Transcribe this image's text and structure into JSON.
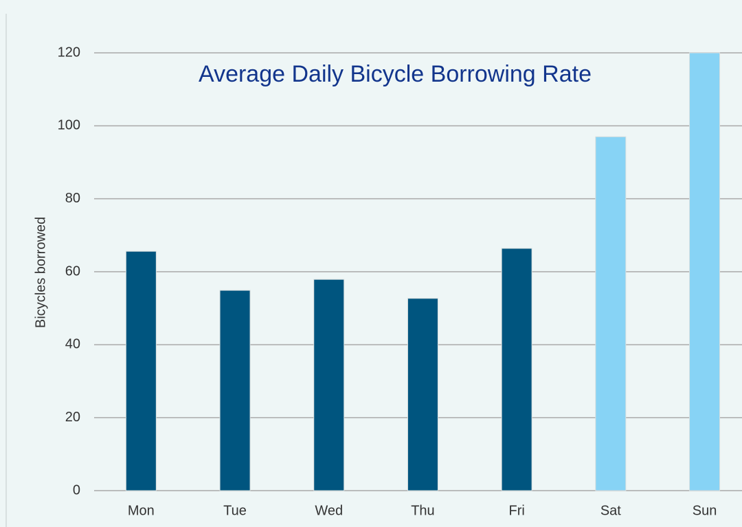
{
  "chart_data": {
    "type": "bar",
    "title": "Average Daily Bicycle Borrowing Rate",
    "y_label": "Bicycles borrowed",
    "categories": [
      "Mon",
      "Tue",
      "Wed",
      "Thu",
      "Fri",
      "Sat",
      "Sun"
    ],
    "values": [
      65.6,
      54.9,
      57.9,
      52.7,
      66.4,
      97,
      120
    ],
    "colors": [
      "#00557f",
      "#00557f",
      "#00557f",
      "#00557f",
      "#00557f",
      "#87d3f5",
      "#87d3f5"
    ],
    "ylim": [
      0,
      120
    ],
    "yticks": [
      0,
      20,
      40,
      60,
      80,
      100,
      120
    ],
    "grid": true
  }
}
